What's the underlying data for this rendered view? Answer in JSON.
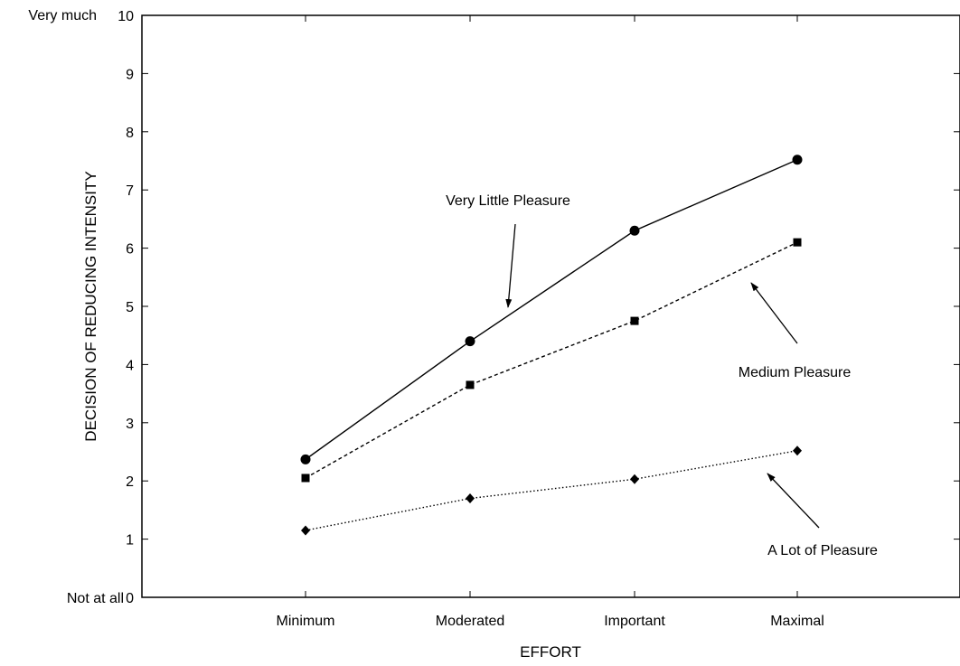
{
  "chart_data": {
    "type": "line",
    "xlabel": "EFFORT",
    "ylabel": "DECISION OF REDUCING INTENSITY",
    "categories": [
      "Minimum",
      "Moderated",
      "Important",
      "Maximal"
    ],
    "ylim": [
      0,
      10
    ],
    "yticks": [
      0,
      1,
      2,
      3,
      4,
      5,
      6,
      7,
      8,
      9,
      10
    ],
    "y_end_labels": {
      "top": "Very much",
      "bottom": "Not at all"
    },
    "grid": false,
    "legend": "none",
    "series": [
      {
        "name": "Very Little Pleasure",
        "values": [
          2.37,
          4.4,
          6.3,
          7.52
        ],
        "marker": "circle",
        "line_style": "solid",
        "color": "#000000"
      },
      {
        "name": "Medium Pleasure",
        "values": [
          2.05,
          3.65,
          4.75,
          6.1
        ],
        "marker": "square",
        "line_style": "dashed",
        "color": "#000000"
      },
      {
        "name": "A Lot of Pleasure",
        "values": [
          1.15,
          1.7,
          2.03,
          2.52
        ],
        "marker": "diamond",
        "line_style": "dotted",
        "color": "#000000"
      }
    ],
    "annotations": [
      {
        "text": "Very Little Pleasure",
        "series": 0,
        "arrow_to_category": "Moderated"
      },
      {
        "text": "Medium Pleasure",
        "series": 1,
        "arrow_to_category": "Maximal"
      },
      {
        "text": "A Lot of Pleasure",
        "series": 2,
        "arrow_to_category": "Maximal"
      }
    ]
  }
}
